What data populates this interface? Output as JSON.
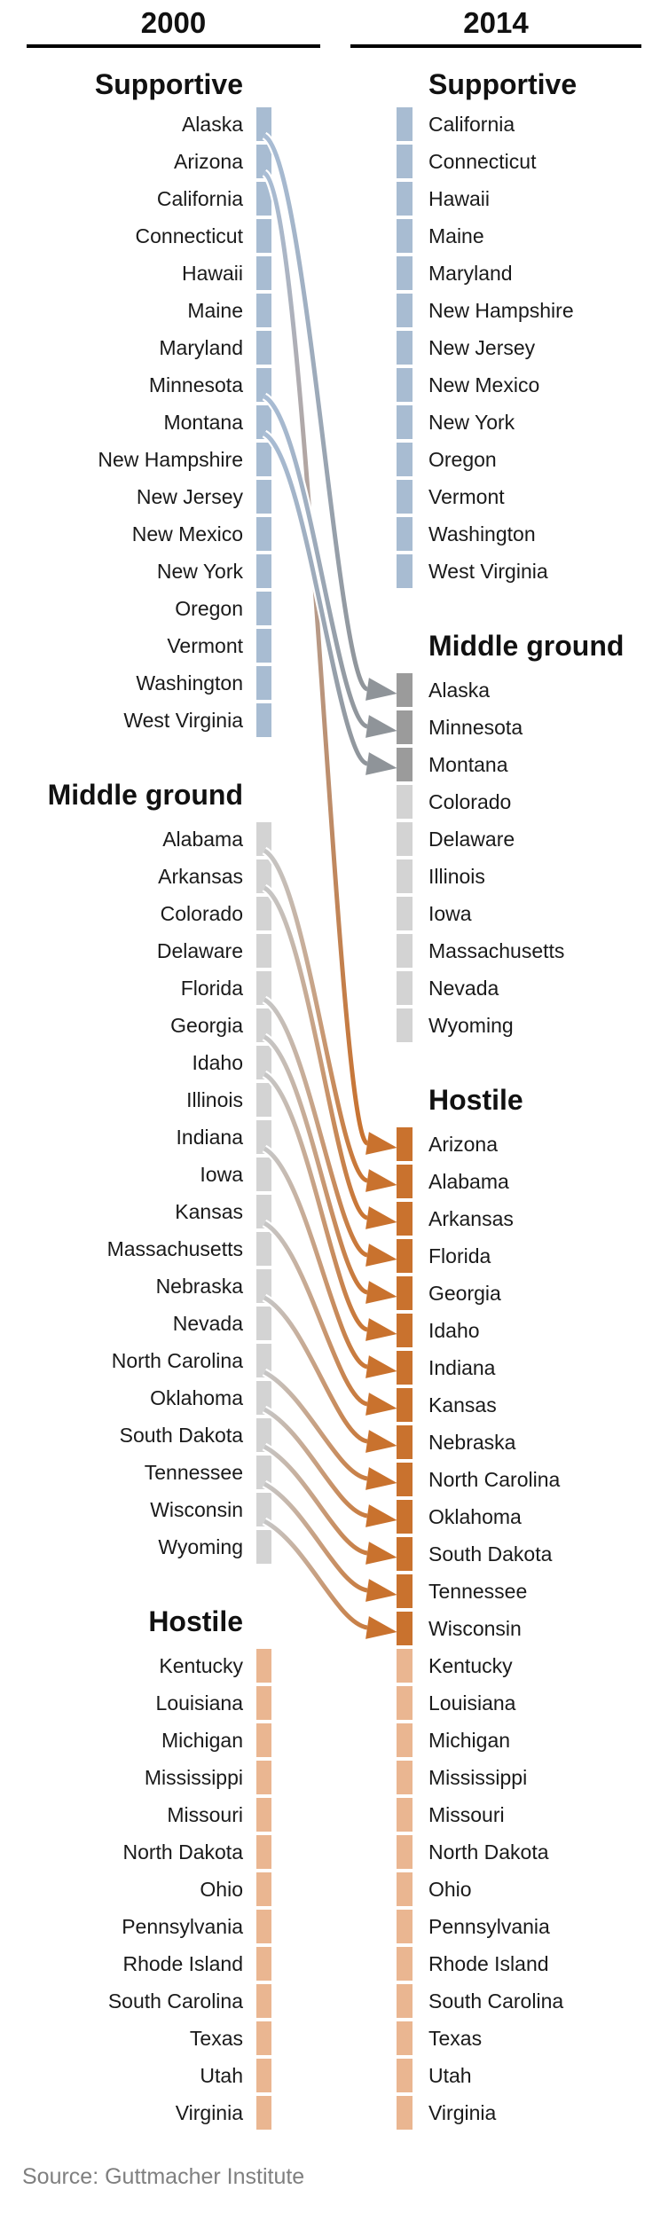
{
  "header": {
    "left_year": "2000",
    "right_year": "2014"
  },
  "source": "Source: Guttmacher Institute",
  "colors": {
    "supportive_bar": "#a8bcd2",
    "middle_bar": "#d3d3d3",
    "middle_bar_moved": "#9b9b9b",
    "hostile_bar": "#eab691",
    "hostile_bar_moved": "#c9722e",
    "arrow_from_supportive": "#a8bcd4",
    "arrow_from_middle": "#c6c6c6",
    "arrow_to_middle": "#8f9499",
    "arrow_to_hostile": "#c9722e",
    "rule": "#000000",
    "heading_text": "#111111",
    "label_text": "#1a1a1a",
    "source_text": "#7f7f7f"
  },
  "chart_data": {
    "type": "slopegraph",
    "title": "",
    "columns": [
      {
        "year": "2000",
        "side": "left",
        "sections": [
          {
            "label": "Supportive",
            "tone": "supportive",
            "states": [
              "Alaska",
              "Arizona",
              "California",
              "Connecticut",
              "Hawaii",
              "Maine",
              "Maryland",
              "Minnesota",
              "Montana",
              "New Hampshire",
              "New Jersey",
              "New Mexico",
              "New York",
              "Oregon",
              "Vermont",
              "Washington",
              "West Virginia"
            ]
          },
          {
            "label": "Middle ground",
            "tone": "middle",
            "states": [
              "Alabama",
              "Arkansas",
              "Colorado",
              "Delaware",
              "Florida",
              "Georgia",
              "Idaho",
              "Illinois",
              "Indiana",
              "Iowa",
              "Kansas",
              "Massachusetts",
              "Nebraska",
              "Nevada",
              "North Carolina",
              "Oklahoma",
              "South Dakota",
              "Tennessee",
              "Wisconsin",
              "Wyoming"
            ]
          },
          {
            "label": "Hostile",
            "tone": "hostile",
            "states": [
              "Kentucky",
              "Louisiana",
              "Michigan",
              "Mississippi",
              "Missouri",
              "North Dakota",
              "Ohio",
              "Pennsylvania",
              "Rhode Island",
              "South Carolina",
              "Texas",
              "Utah",
              "Virginia"
            ]
          }
        ]
      },
      {
        "year": "2014",
        "side": "right",
        "sections": [
          {
            "label": "Supportive",
            "tone": "supportive",
            "states": [
              "California",
              "Connecticut",
              "Hawaii",
              "Maine",
              "Maryland",
              "New Hampshire",
              "New Jersey",
              "New Mexico",
              "New York",
              "Oregon",
              "Vermont",
              "Washington",
              "West Virginia"
            ]
          },
          {
            "label": "Middle ground",
            "tone": "middle",
            "states": [
              "Alaska",
              "Minnesota",
              "Montana",
              "Colorado",
              "Delaware",
              "Illinois",
              "Iowa",
              "Massachusetts",
              "Nevada",
              "Wyoming"
            ]
          },
          {
            "label": "Hostile",
            "tone": "hostile",
            "states": [
              "Arizona",
              "Alabama",
              "Arkansas",
              "Florida",
              "Georgia",
              "Idaho",
              "Indiana",
              "Kansas",
              "Nebraska",
              "North Carolina",
              "Oklahoma",
              "South Dakota",
              "Tennessee",
              "Wisconsin",
              "Kentucky",
              "Louisiana",
              "Michigan",
              "Mississippi",
              "Missouri",
              "North Dakota",
              "Ohio",
              "Pennsylvania",
              "Rhode Island",
              "South Carolina",
              "Texas",
              "Utah",
              "Virginia"
            ]
          }
        ]
      }
    ],
    "transitions": [
      {
        "state": "Alaska",
        "from": "Supportive",
        "to": "Middle ground"
      },
      {
        "state": "Minnesota",
        "from": "Supportive",
        "to": "Middle ground"
      },
      {
        "state": "Montana",
        "from": "Supportive",
        "to": "Middle ground"
      },
      {
        "state": "Arizona",
        "from": "Supportive",
        "to": "Hostile"
      },
      {
        "state": "Alabama",
        "from": "Middle ground",
        "to": "Hostile"
      },
      {
        "state": "Arkansas",
        "from": "Middle ground",
        "to": "Hostile"
      },
      {
        "state": "Florida",
        "from": "Middle ground",
        "to": "Hostile"
      },
      {
        "state": "Georgia",
        "from": "Middle ground",
        "to": "Hostile"
      },
      {
        "state": "Idaho",
        "from": "Middle ground",
        "to": "Hostile"
      },
      {
        "state": "Indiana",
        "from": "Middle ground",
        "to": "Hostile"
      },
      {
        "state": "Kansas",
        "from": "Middle ground",
        "to": "Hostile"
      },
      {
        "state": "Nebraska",
        "from": "Middle ground",
        "to": "Hostile"
      },
      {
        "state": "North Carolina",
        "from": "Middle ground",
        "to": "Hostile"
      },
      {
        "state": "Oklahoma",
        "from": "Middle ground",
        "to": "Hostile"
      },
      {
        "state": "South Dakota",
        "from": "Middle ground",
        "to": "Hostile"
      },
      {
        "state": "Tennessee",
        "from": "Middle ground",
        "to": "Hostile"
      },
      {
        "state": "Wisconsin",
        "from": "Middle ground",
        "to": "Hostile"
      }
    ]
  }
}
